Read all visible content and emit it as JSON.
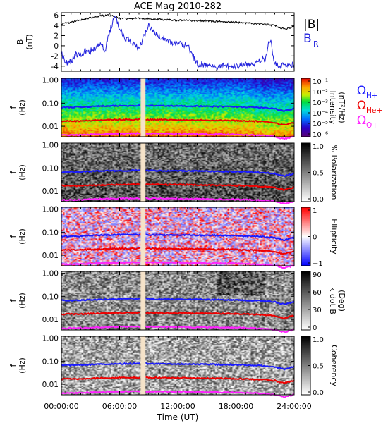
{
  "chart_data": {
    "type": "line",
    "title": "ACE Mag 2010-282",
    "xlabel": "Time (UT)",
    "x_ticks": [
      "00:00:00",
      "06:00:00",
      "12:00:00",
      "18:00:00",
      "24:00:00"
    ],
    "x_range_hours": [
      0,
      24
    ],
    "data_gap_hours": [
      8.2,
      8.6
    ],
    "panels": [
      {
        "id": "field",
        "type": "line",
        "ylabel": "B",
        "yunit": "(nT)",
        "ylim": [
          -5,
          6.5
        ],
        "yticks": [
          "-4",
          "-2",
          "0",
          "2",
          "4",
          "6"
        ],
        "legend": [
          {
            "label": "|B|",
            "color": "#000000"
          },
          {
            "label": "B",
            "sub": "R",
            "color": "#2222dd"
          }
        ],
        "series": [
          {
            "name": "|B|",
            "color": "#000000",
            "x": [
              0,
              1,
              2,
              3,
              4,
              5,
              5.5,
              6,
              7,
              8,
              9,
              10,
              11,
              12,
              13,
              14,
              15,
              16,
              17,
              18,
              19,
              20,
              21,
              22,
              22.5,
              23,
              23.5,
              24
            ],
            "y": [
              4.3,
              4.6,
              5.1,
              5.5,
              5.9,
              6.0,
              5.7,
              5.4,
              5.3,
              5.4,
              5.3,
              5.2,
              5.1,
              5.0,
              5.0,
              4.9,
              4.9,
              4.8,
              4.7,
              4.6,
              4.5,
              4.4,
              4.2,
              4.0,
              3.6,
              3.3,
              3.5,
              4.0
            ]
          },
          {
            "name": "B",
            "color": "#2222dd",
            "x": [
              0,
              0.5,
              1,
              1.5,
              2,
              2.5,
              3,
              3.5,
              4,
              4.5,
              5,
              5.5,
              6,
              6.5,
              7,
              7.5,
              8,
              9,
              9.5,
              10,
              11,
              11.5,
              12,
              13,
              14,
              15,
              16,
              17,
              18,
              19,
              20,
              21,
              21.5,
              22,
              22.5,
              23,
              23.5,
              24
            ],
            "y": [
              -1.5,
              -3.5,
              -3.0,
              -1.5,
              -2.0,
              -1.0,
              -1.0,
              -0.5,
              0.5,
              -1.0,
              3.0,
              5.5,
              3.5,
              1.5,
              1.0,
              0.0,
              -0.5,
              4.0,
              2.5,
              2.0,
              1.0,
              0.5,
              0.8,
              0.0,
              -3.5,
              -3.8,
              -4.0,
              -4.1,
              -3.9,
              -3.8,
              -3.5,
              -2.5,
              1.5,
              -3.5,
              -3.8,
              -4.0,
              -3.8,
              -4.0
            ]
          }
        ]
      },
      {
        "id": "intensity",
        "type": "heatmap",
        "ylabel": "f",
        "yunit": "(Hz)",
        "colorbar_label": "Intensity",
        "colorbar_unit": "(nT²/Hz)",
        "colorbar_ticks": [
          "10⁻¹",
          "10⁻²",
          "10⁻³",
          "10⁻⁴",
          "10⁻⁵",
          "10⁻⁶"
        ],
        "colormap": "rainbow"
      },
      {
        "id": "polarization",
        "type": "heatmap",
        "ylabel": "f",
        "yunit": "(Hz)",
        "colorbar_label": "% Polarization",
        "colorbar_unit": "",
        "colorbar_ticks": [
          "1.0",
          "0.5",
          "0.0"
        ],
        "colormap": "gray"
      },
      {
        "id": "ellipticity",
        "type": "heatmap",
        "ylabel": "f",
        "yunit": "(Hz)",
        "colorbar_label": "Ellipticity",
        "colorbar_unit": "",
        "colorbar_ticks": [
          "1",
          "0",
          "−1"
        ],
        "colormap": "bwr"
      },
      {
        "id": "kdotb",
        "type": "heatmap",
        "ylabel": "f",
        "yunit": "(Hz)",
        "colorbar_label": "k dot B",
        "colorbar_unit": "(Deg)",
        "colorbar_ticks": [
          "90",
          "60",
          "30",
          "0"
        ],
        "colormap": "gray"
      },
      {
        "id": "coherency",
        "type": "heatmap",
        "ylabel": "f",
        "yunit": "(Hz)",
        "colorbar_label": "Coherency",
        "colorbar_unit": "",
        "colorbar_ticks": [
          "1.0",
          "0.5",
          "0.0"
        ],
        "colormap": "gray"
      }
    ],
    "freq_yticks": [
      "1.00",
      "0.10",
      "0.01"
    ],
    "freq_range_hz": [
      0.0035,
      1.2
    ],
    "gyrofrequency_lines": [
      {
        "label": "Ω",
        "sub": "H+",
        "color": "#1a1aff",
        "x": [
          0,
          2,
          4,
          6,
          8,
          10,
          12,
          14,
          16,
          18,
          20,
          21,
          22,
          22.5,
          23,
          23.5,
          24
        ],
        "y": [
          0.066,
          0.068,
          0.074,
          0.077,
          0.079,
          0.077,
          0.075,
          0.074,
          0.072,
          0.07,
          0.066,
          0.062,
          0.058,
          0.05,
          0.045,
          0.052,
          0.058
        ]
      },
      {
        "label": "Ω",
        "sub": "He+",
        "color": "#ee0000",
        "x": [
          0,
          2,
          4,
          6,
          8,
          10,
          12,
          14,
          16,
          18,
          20,
          21,
          22,
          22.5,
          23,
          23.5,
          24
        ],
        "y": [
          0.017,
          0.017,
          0.0185,
          0.0192,
          0.0197,
          0.0193,
          0.0188,
          0.0185,
          0.018,
          0.0175,
          0.0165,
          0.0155,
          0.0145,
          0.0125,
          0.0112,
          0.013,
          0.0145
        ]
      },
      {
        "label": "Ω",
        "sub": "O+",
        "color": "#ff22ff",
        "x": [
          0,
          2,
          4,
          6,
          8,
          10,
          12,
          14,
          16,
          18,
          20,
          21,
          22,
          22.5,
          23,
          23.5,
          24
        ],
        "y": [
          0.0041,
          0.0042,
          0.0046,
          0.0048,
          0.0049,
          0.0048,
          0.0047,
          0.0046,
          0.0045,
          0.0044,
          0.0041,
          0.0039,
          0.0036,
          0.0031,
          0.0028,
          0.0032,
          0.0036
        ]
      }
    ]
  }
}
